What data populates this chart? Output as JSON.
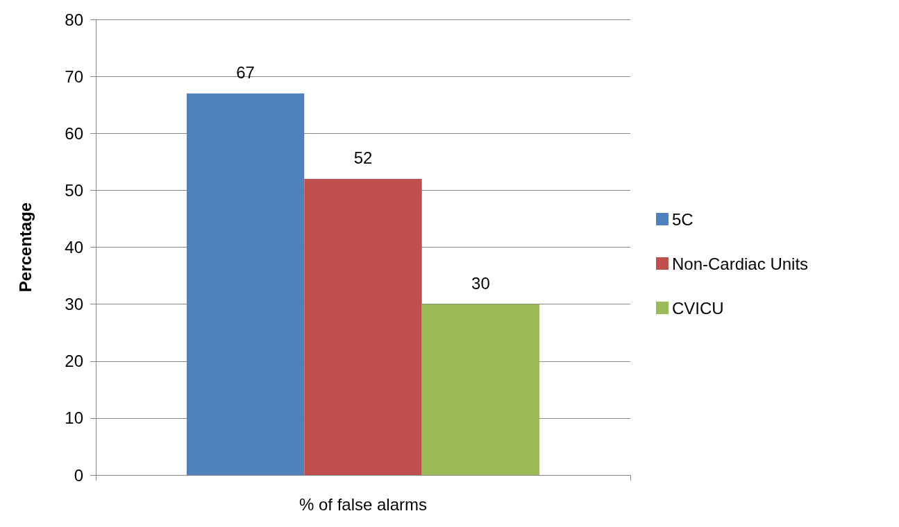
{
  "chart_data": {
    "type": "bar",
    "ylabel": "Percentage",
    "categories": [
      "% of false alarms"
    ],
    "series": [
      {
        "name": "5C",
        "color": "#4f81bd",
        "values": [
          67
        ]
      },
      {
        "name": "Non-Cardiac Units",
        "color": "#c0504d",
        "values": [
          52
        ]
      },
      {
        "name": "CVICU",
        "color": "#9bbb59",
        "values": [
          30
        ]
      }
    ],
    "ylim": [
      0,
      80
    ],
    "yticks": [
      0,
      10,
      20,
      30,
      40,
      50,
      60,
      70,
      80
    ],
    "grid": "y",
    "legend": "right",
    "data_labels": true
  }
}
